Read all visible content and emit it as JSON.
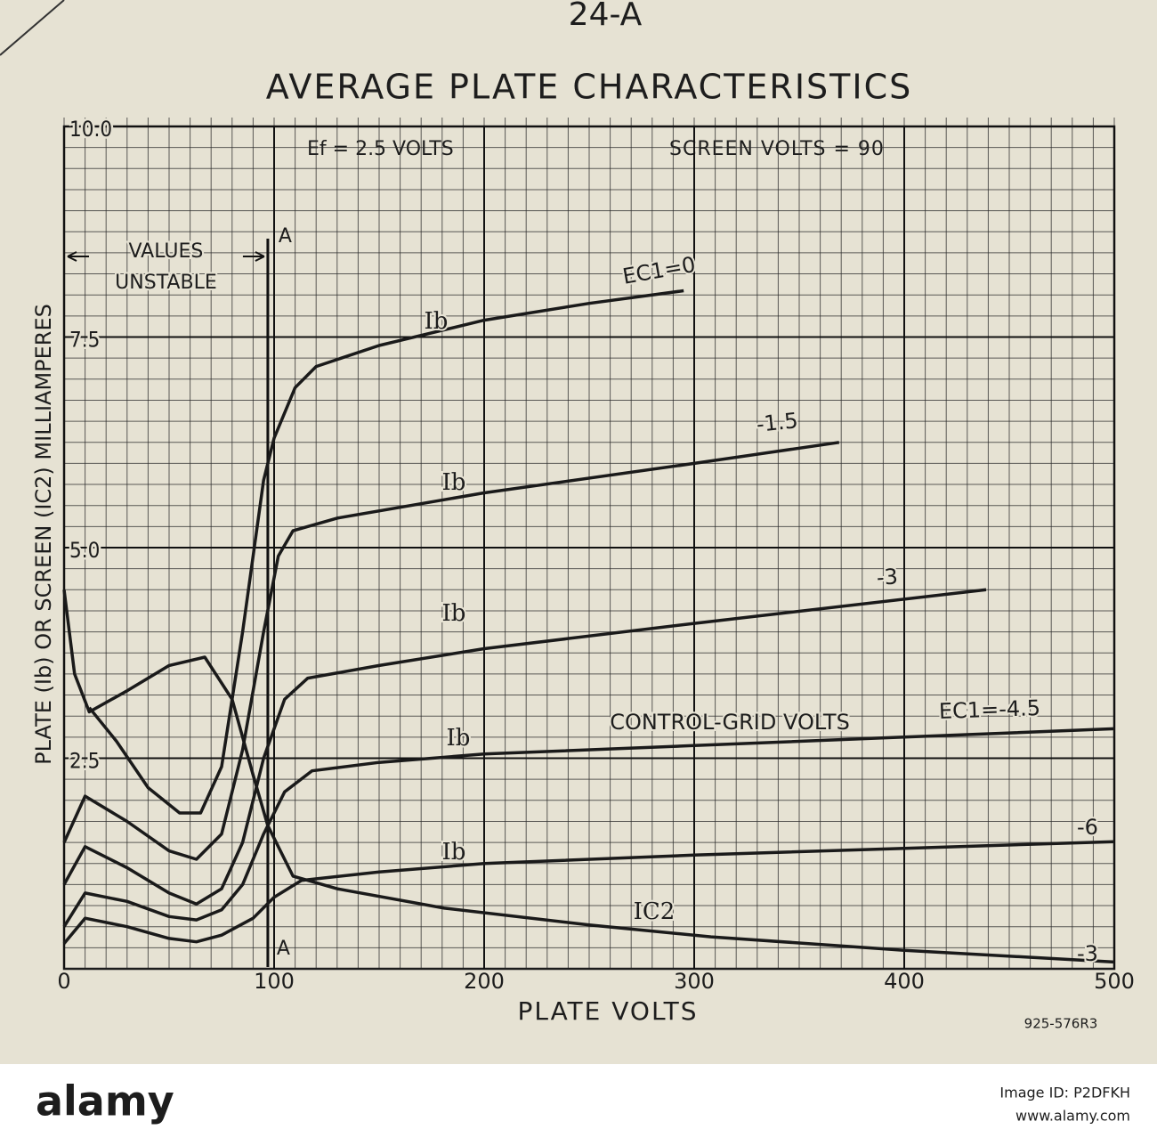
{
  "chart_data": {
    "type": "line",
    "header": "24-A",
    "title": "AVERAGE PLATE CHARACTERISTICS",
    "conditions": [
      "Ef = 2.5 VOLTS",
      "SCREEN VOLTS = 90"
    ],
    "x_label": "PLATE VOLTS",
    "y_label": "PLATE (Ib) OR SCREEN (IC2) MILLIAMPERES",
    "code": "925-576R3",
    "xlim": [
      0,
      500
    ],
    "xticks": [
      0,
      100,
      200,
      300,
      400,
      500
    ],
    "ylim": [
      0,
      10
    ],
    "yticks": [
      2.5,
      {
        "value": 5,
        "label": "5.0"
      },
      7.5,
      {
        "value": 10,
        "label": "10.0"
      }
    ],
    "grid": true,
    "color": "#1a1a1a",
    "series": [
      {
        "name": "EC1=0",
        "curve_label": "Ib",
        "x": [
          12,
          25,
          40,
          55,
          65,
          75,
          85,
          95,
          100,
          110,
          120,
          150,
          200,
          250,
          295
        ],
        "values": [
          3.1,
          2.7,
          2.15,
          1.85,
          1.85,
          2.4,
          4.0,
          5.8,
          6.3,
          6.9,
          7.15,
          7.4,
          7.7,
          7.9,
          8.05
        ]
      },
      {
        "name": "-1.5",
        "curve_label": "Ib",
        "x": [
          0,
          10,
          30,
          50,
          63,
          75,
          85,
          95,
          102,
          109,
          130,
          200,
          300,
          369
        ],
        "values": [
          1.5,
          2.05,
          1.75,
          1.4,
          1.3,
          1.6,
          2.6,
          4.0,
          4.9,
          5.2,
          5.35,
          5.65,
          6.0,
          6.25
        ]
      },
      {
        "name": "-3",
        "curve_label": "Ib",
        "x": [
          0,
          10,
          30,
          50,
          63,
          75,
          85,
          95,
          105,
          116,
          150,
          200,
          300,
          439
        ],
        "values": [
          1.0,
          1.45,
          1.2,
          0.9,
          0.77,
          0.95,
          1.5,
          2.5,
          3.2,
          3.45,
          3.6,
          3.8,
          4.1,
          4.5
        ]
      },
      {
        "name": "EC1=-4.5",
        "curve_label": "Ib",
        "note": "CONTROL-GRID VOLTS",
        "x": [
          0,
          10,
          30,
          50,
          63,
          75,
          85,
          95,
          105,
          118,
          150,
          200,
          300,
          400,
          500
        ],
        "values": [
          0.5,
          0.9,
          0.8,
          0.62,
          0.58,
          0.7,
          1.0,
          1.6,
          2.1,
          2.35,
          2.45,
          2.55,
          2.65,
          2.75,
          2.85
        ]
      },
      {
        "name": "-6",
        "curve_label": "Ib",
        "x": [
          0,
          10,
          30,
          50,
          63,
          75,
          90,
          100,
          113,
          150,
          200,
          300,
          400,
          500
        ],
        "values": [
          0.3,
          0.6,
          0.5,
          0.36,
          0.32,
          0.4,
          0.6,
          0.85,
          1.05,
          1.15,
          1.25,
          1.35,
          1.43,
          1.51
        ]
      },
      {
        "name": "-3",
        "curve_label": "IC2",
        "x": [
          0,
          5,
          12,
          30,
          50,
          67,
          80,
          90,
          97,
          109,
          130,
          181,
          250,
          308,
          400,
          500
        ],
        "values": [
          4.5,
          3.5,
          3.05,
          3.3,
          3.6,
          3.7,
          3.2,
          2.3,
          1.7,
          1.1,
          0.95,
          0.72,
          0.52,
          0.38,
          0.22,
          0.08
        ]
      }
    ],
    "boundary": {
      "x": 97,
      "labels": [
        "A",
        "A"
      ],
      "text": [
        "VALUES",
        "UNSTABLE"
      ]
    }
  },
  "footer": {
    "brand": "alamy",
    "image_id": "Image ID: P2DFKH",
    "url": "www.alamy.com"
  }
}
